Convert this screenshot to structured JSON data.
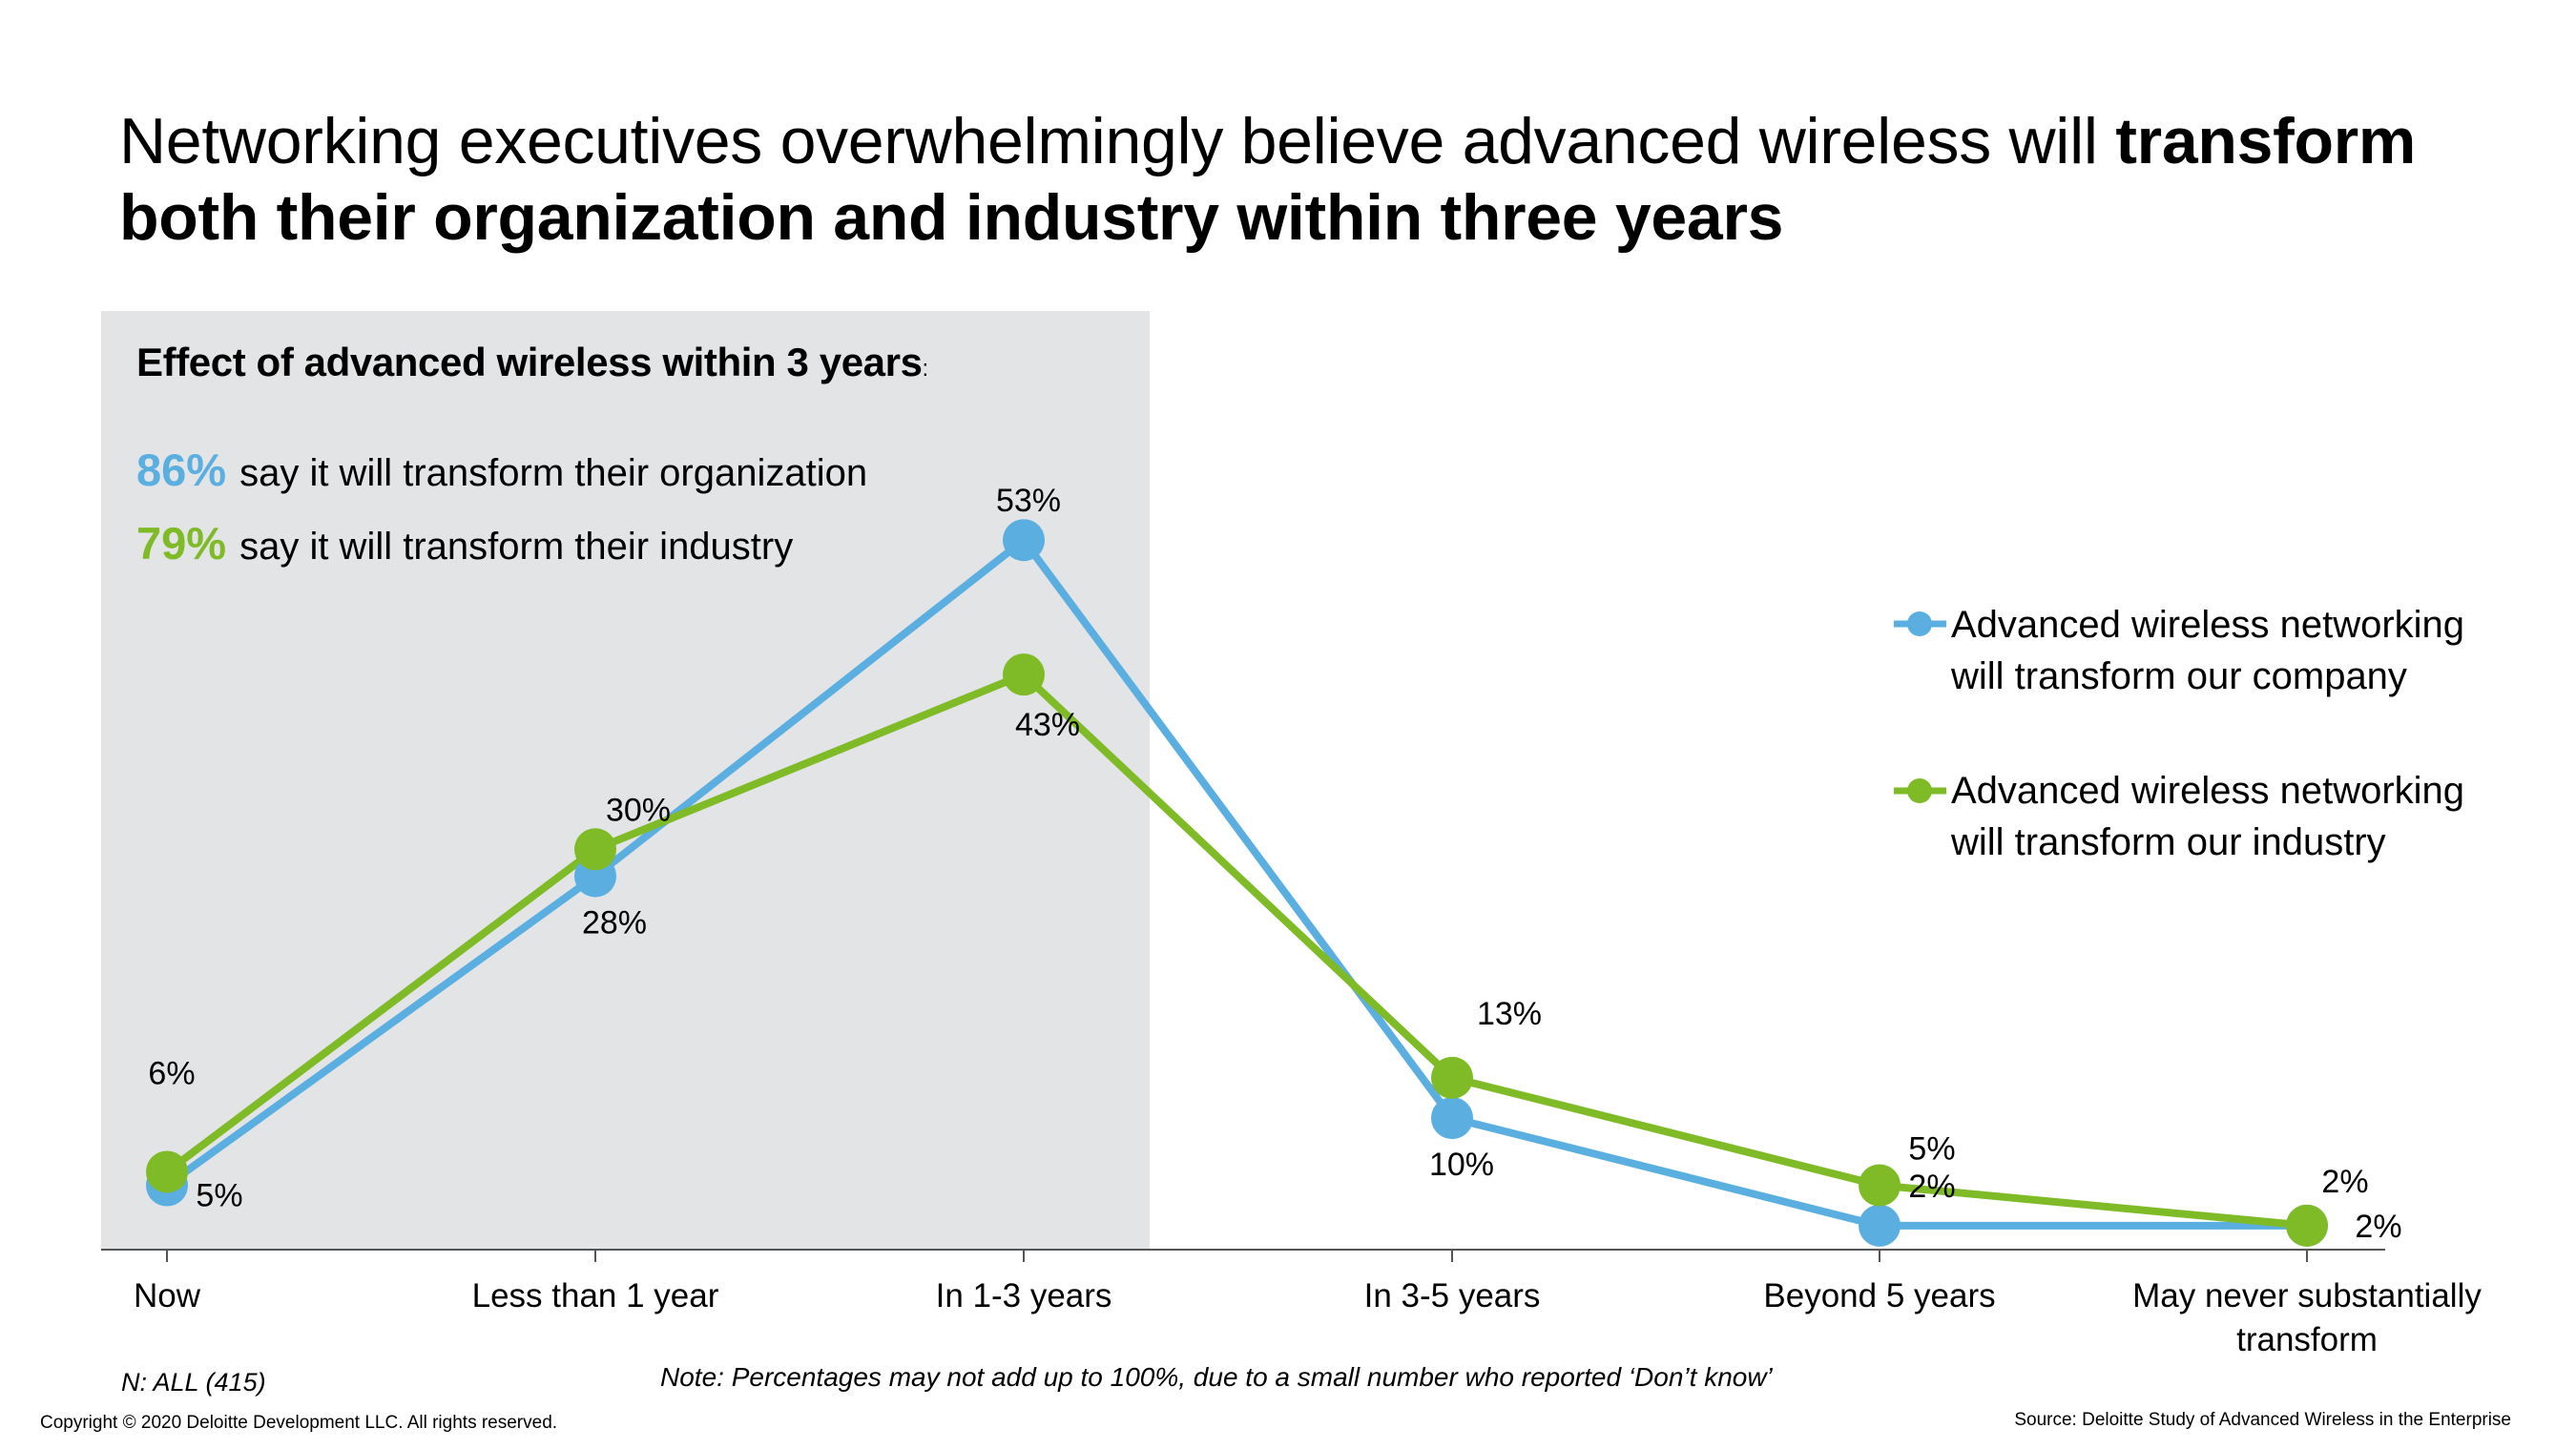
{
  "title": {
    "normal": "Networking executives overwhelmingly believe advanced wireless will ",
    "bold_1": "transform",
    "bold_2": "both their organization and industry within three years"
  },
  "panel": {
    "heading": "Effect of advanced wireless within 3 years",
    "heading_suffix": ":",
    "stats": [
      {
        "pct": "86%",
        "text": "say it will transform their organization",
        "color": "#5aafe0"
      },
      {
        "pct": "79%",
        "text": "say it will transform their industry",
        "color": "#7fba27"
      }
    ]
  },
  "chart_data": {
    "type": "line",
    "categories": [
      "Now",
      "Less than 1 year",
      "In 1-3 years",
      "In 3-5 years",
      "Beyond 5 years",
      "May never substantially transform"
    ],
    "category_lines": [
      [
        "Now"
      ],
      [
        "Less than 1 year"
      ],
      [
        "In 1-3 years"
      ],
      [
        "In 3-5 years"
      ],
      [
        "Beyond 5 years"
      ],
      [
        "May never substantially",
        "transform"
      ]
    ],
    "series": [
      {
        "name": "Advanced wireless networking will transform our company",
        "legend_lines": [
          "Advanced wireless networking",
          "will transform our company"
        ],
        "color": "#5aafe0",
        "values": [
          5,
          28,
          53,
          10,
          2,
          2
        ],
        "labels": [
          "5%",
          "28%",
          "53%",
          "10%",
          "2%",
          "2%"
        ]
      },
      {
        "name": "Advanced wireless networking will transform our industry",
        "legend_lines": [
          "Advanced wireless networking",
          "will transform our industry"
        ],
        "color": "#7fba27",
        "values": [
          6,
          30,
          43,
          13,
          5,
          2
        ],
        "labels": [
          "6%",
          "30%",
          "43%",
          "13%",
          "5%",
          "2%"
        ]
      }
    ],
    "ylim": [
      0,
      60
    ],
    "xlabel": "",
    "ylabel": "",
    "legend_position": "right",
    "highlight_band": {
      "from": "Now",
      "to": "In 1-3 years"
    }
  },
  "footer": {
    "n": "N: ALL (415)",
    "note": "Note: Percentages may not add up to 100%, due to a small number who reported ‘Don’t know’",
    "copyright": "Copyright © 2020 Deloitte Development LLC. All rights reserved.",
    "source": "Source: Deloitte Study of Advanced Wireless in the Enterprise"
  }
}
